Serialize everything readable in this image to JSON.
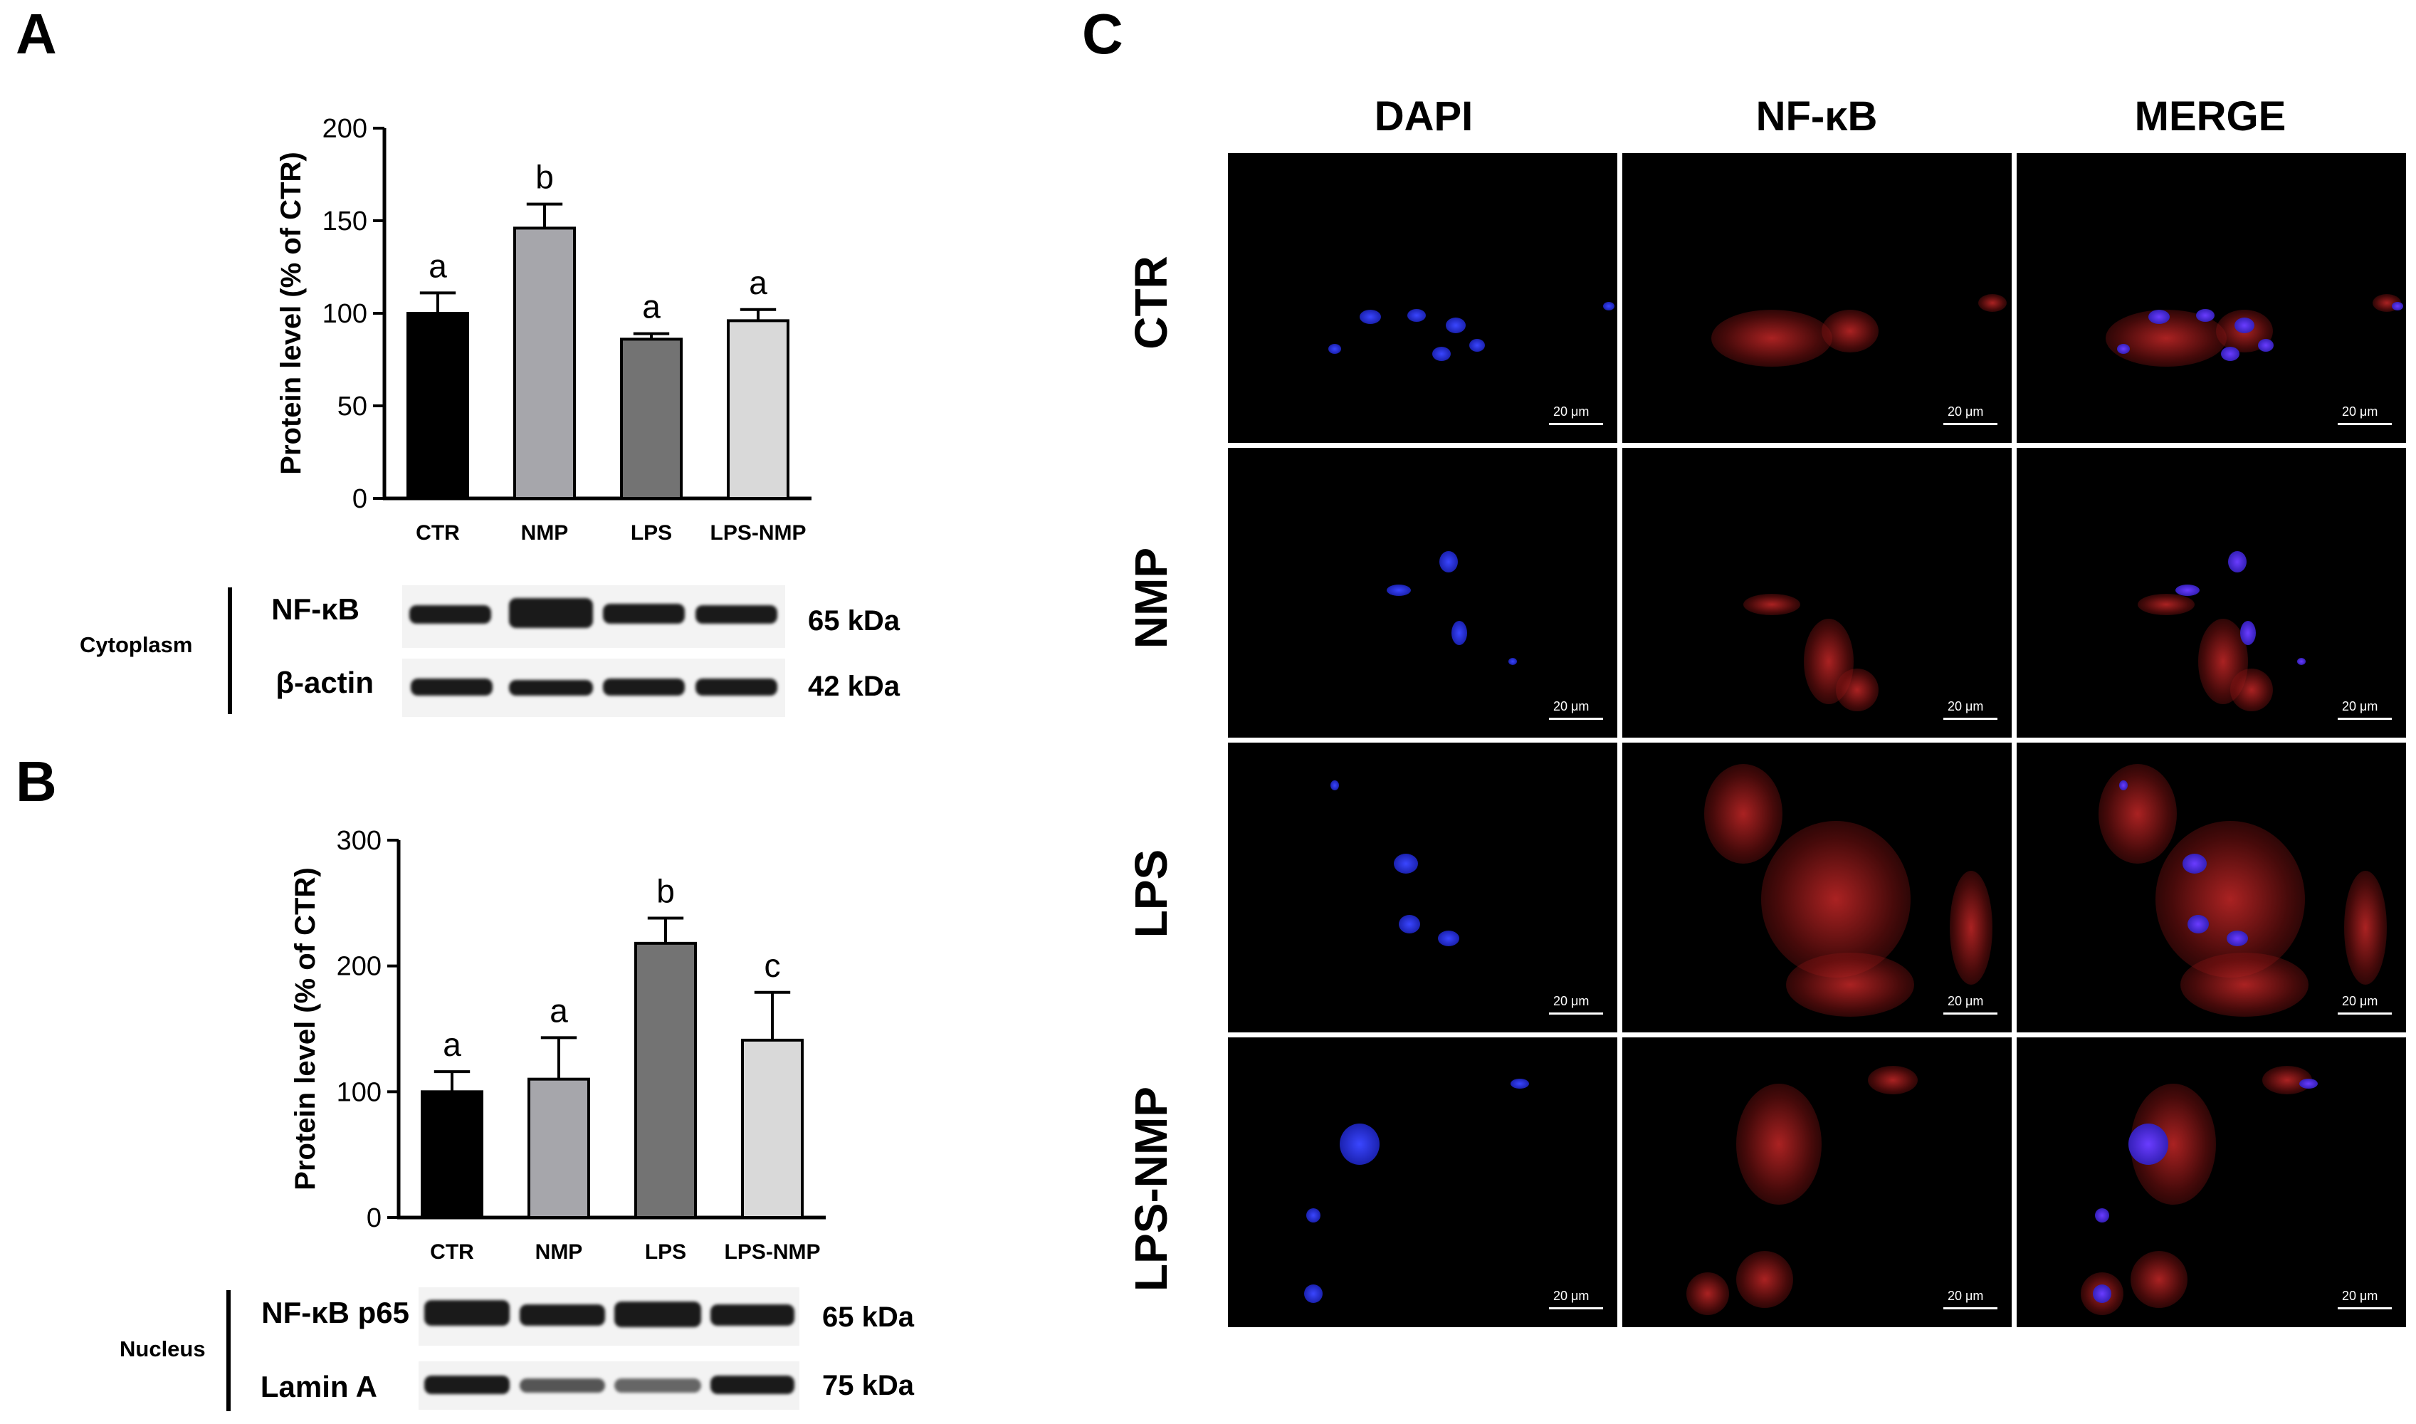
{
  "panels": {
    "A": "A",
    "B": "B",
    "C": "C"
  },
  "chart_data": [
    {
      "type": "bar",
      "panel": "A",
      "categories": [
        "CTR",
        "NMP",
        "LPS",
        "LPS-NMP"
      ],
      "values": [
        100,
        146,
        86,
        96
      ],
      "errors": [
        11,
        13,
        3,
        6
      ],
      "significance": [
        "a",
        "b",
        "a",
        "a"
      ],
      "colors": [
        "#000000",
        "#a6a6ab",
        "#737373",
        "#d9d9d9"
      ],
      "ylabel": "Protein level (% of CTR)",
      "ylim": [
        0,
        200
      ],
      "yticks": [
        0,
        50,
        100,
        150,
        200
      ]
    },
    {
      "type": "bar",
      "panel": "B",
      "categories": [
        "CTR",
        "NMP",
        "LPS",
        "LPS-NMP"
      ],
      "values": [
        100,
        110,
        218,
        141
      ],
      "errors": [
        16,
        33,
        20,
        38
      ],
      "significance": [
        "a",
        "a",
        "b",
        "c"
      ],
      "colors": [
        "#000000",
        "#a6a6ab",
        "#737373",
        "#d9d9d9"
      ],
      "ylabel": "Protein level (% of CTR)",
      "ylim": [
        0,
        300
      ],
      "yticks": [
        0,
        100,
        200,
        300
      ]
    }
  ],
  "blots": {
    "A": {
      "fraction": "Cytoplasm",
      "rows": [
        {
          "label": "NF-κB",
          "kda": "65 kDa"
        },
        {
          "label": "β-actin",
          "kda": "42 kDa"
        }
      ]
    },
    "B": {
      "fraction": "Nucleus",
      "rows": [
        {
          "label": "NF-κB p65",
          "kda": "65 kDa"
        },
        {
          "label": "Lamin A",
          "kda": "75 kDa"
        }
      ]
    }
  },
  "microscopy": {
    "columns": [
      "DAPI",
      "NF-κB",
      "MERGE"
    ],
    "rows": [
      "CTR",
      "NMP",
      "LPS",
      "LPS-NMP"
    ],
    "scale_bar": "20 μm"
  }
}
